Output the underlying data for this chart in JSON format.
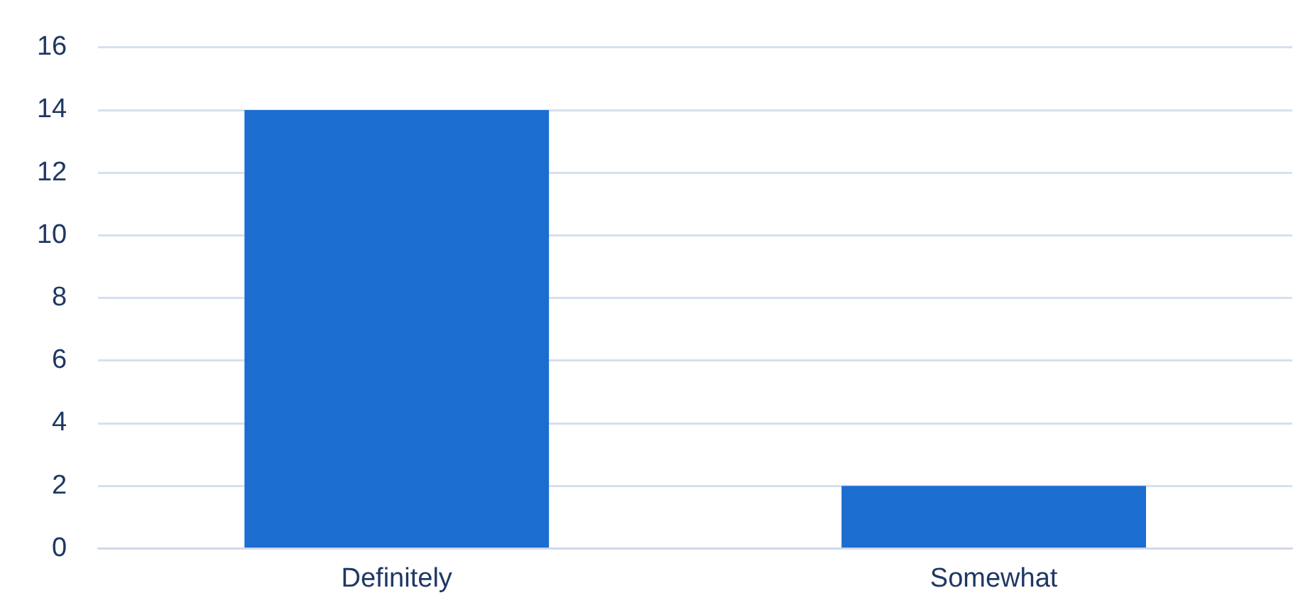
{
  "chart_data": {
    "type": "bar",
    "categories": [
      "Definitely",
      "Somewhat"
    ],
    "values": [
      14,
      2
    ],
    "color": "#1c6dd0",
    "ylim": [
      0,
      16
    ],
    "yticks": [
      0,
      2,
      4,
      6,
      8,
      10,
      12,
      14,
      16
    ],
    "grid": "y",
    "legend": false
  }
}
